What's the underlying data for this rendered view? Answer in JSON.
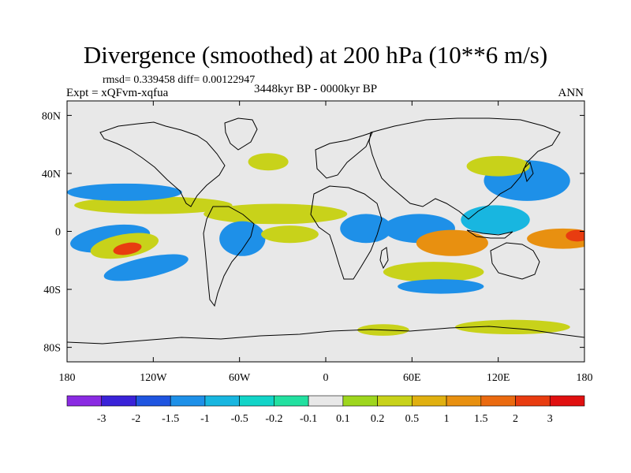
{
  "title": "Divergence (smoothed) at 200 hPa (10**6 m/s)",
  "stats_label": "rmsd= 0.339458  diff= 0.00122947",
  "experiment_label": "Expt = xQFvm-xqfua",
  "period_label": "3448kyr BP - 0000kyr BP",
  "season_label": "ANN",
  "colors": {
    "background_ocean": "#e8e8e8",
    "coast": "#000000"
  },
  "chart_data": {
    "type": "heatmap",
    "title": "Divergence (smoothed) at 200 hPa (10**6 m/s)",
    "xlabel": "",
    "ylabel": "",
    "xlim": [
      -180,
      180
    ],
    "ylim": [
      -90,
      90
    ],
    "x_ticks": [
      {
        "value": -180,
        "label": "180"
      },
      {
        "value": -120,
        "label": "120W"
      },
      {
        "value": -60,
        "label": "60W"
      },
      {
        "value": 0,
        "label": "0"
      },
      {
        "value": 60,
        "label": "60E"
      },
      {
        "value": 120,
        "label": "120E"
      },
      {
        "value": 180,
        "label": "180"
      }
    ],
    "y_ticks": [
      {
        "value": 80,
        "label": "80N"
      },
      {
        "value": 40,
        "label": "40N"
      },
      {
        "value": 0,
        "label": "0"
      },
      {
        "value": -40,
        "label": "40S"
      },
      {
        "value": -80,
        "label": "80S"
      }
    ],
    "levels": [
      "-3",
      "-2",
      "-1.5",
      "-1",
      "-0.5",
      "-0.2",
      "-0.1",
      "0.1",
      "0.2",
      "0.5",
      "1",
      "1.5",
      "2",
      "3"
    ],
    "colorbar_colors": [
      "#8a2be2",
      "#3a22d8",
      "#1f55e0",
      "#1e90e8",
      "#18b6e0",
      "#12d4c8",
      "#22e0a0",
      "#e8e8e8",
      "#9ed61e",
      "#c8d21a",
      "#e0b010",
      "#e89010",
      "#ea6a10",
      "#e83c10",
      "#e01010"
    ],
    "features": [
      {
        "name": "central-pacific-convergence",
        "lon": -150,
        "lat": -5,
        "rx": 28,
        "ry": 9,
        "value": -1,
        "rot": -8
      },
      {
        "name": "central-pacific-max",
        "lon": -140,
        "lat": -10,
        "rx": 24,
        "ry": 8,
        "value": 0.5,
        "rot": -10
      },
      {
        "name": "central-pacific-peak",
        "lon": -138,
        "lat": -12,
        "rx": 10,
        "ry": 4,
        "value": 3,
        "rot": -10
      },
      {
        "name": "south-pacific-band",
        "lon": -125,
        "lat": -25,
        "rx": 30,
        "ry": 7,
        "value": -1,
        "rot": -12
      },
      {
        "name": "north-pacific-pos-band",
        "lon": -120,
        "lat": 18,
        "rx": 55,
        "ry": 6,
        "value": 0.5,
        "rot": 0
      },
      {
        "name": "north-pacific-neg-band",
        "lon": -140,
        "lat": 27,
        "rx": 40,
        "ry": 6,
        "value": -1,
        "rot": 0
      },
      {
        "name": "atlantic-pos-band",
        "lon": -35,
        "lat": 12,
        "rx": 50,
        "ry": 7,
        "value": 0.5,
        "rot": 0
      },
      {
        "name": "amazon-neg",
        "lon": -58,
        "lat": -5,
        "rx": 16,
        "ry": 12,
        "value": -1,
        "rot": 0
      },
      {
        "name": "equatorial-atlantic",
        "lon": -25,
        "lat": -2,
        "rx": 20,
        "ry": 6,
        "value": 0.5,
        "rot": 0
      },
      {
        "name": "africa-neg",
        "lon": 28,
        "lat": 2,
        "rx": 18,
        "ry": 10,
        "value": -1,
        "rot": 0
      },
      {
        "name": "indian-ocean-neg",
        "lon": 65,
        "lat": 2,
        "rx": 25,
        "ry": 10,
        "value": -1,
        "rot": 0
      },
      {
        "name": "indian-ocean-pos",
        "lon": 88,
        "lat": -8,
        "rx": 25,
        "ry": 9,
        "value": 1.5,
        "rot": 0
      },
      {
        "name": "maritime-neg",
        "lon": 118,
        "lat": 8,
        "rx": 24,
        "ry": 10,
        "value": -0.5,
        "rot": 0
      },
      {
        "name": "west-pacific-pos",
        "lon": 165,
        "lat": -5,
        "rx": 25,
        "ry": 7,
        "value": 1.5,
        "rot": 0
      },
      {
        "name": "west-pacific-peak",
        "lon": 175,
        "lat": -3,
        "rx": 8,
        "ry": 4,
        "value": 3,
        "rot": 0
      },
      {
        "name": "north-asia-neg",
        "lon": 140,
        "lat": 35,
        "rx": 30,
        "ry": 14,
        "value": -1,
        "rot": 0
      },
      {
        "name": "north-asia-pos",
        "lon": 120,
        "lat": 45,
        "rx": 22,
        "ry": 7,
        "value": 0.5,
        "rot": 0
      },
      {
        "name": "south-indian-pos",
        "lon": 75,
        "lat": -28,
        "rx": 35,
        "ry": 7,
        "value": 0.5,
        "rot": 0
      },
      {
        "name": "south-indian-neg",
        "lon": 80,
        "lat": -38,
        "rx": 30,
        "ry": 5,
        "value": -1,
        "rot": 0
      },
      {
        "name": "north-atlantic-pos",
        "lon": -40,
        "lat": 48,
        "rx": 14,
        "ry": 6,
        "value": 0.5,
        "rot": 0
      },
      {
        "name": "southern-ocean-pos",
        "lon": 130,
        "lat": -66,
        "rx": 40,
        "ry": 5,
        "value": 0.5,
        "rot": 0
      },
      {
        "name": "southern-ocean-pos-2",
        "lon": 40,
        "lat": -68,
        "rx": 18,
        "ry": 4,
        "value": 0.5,
        "rot": 0
      }
    ]
  }
}
